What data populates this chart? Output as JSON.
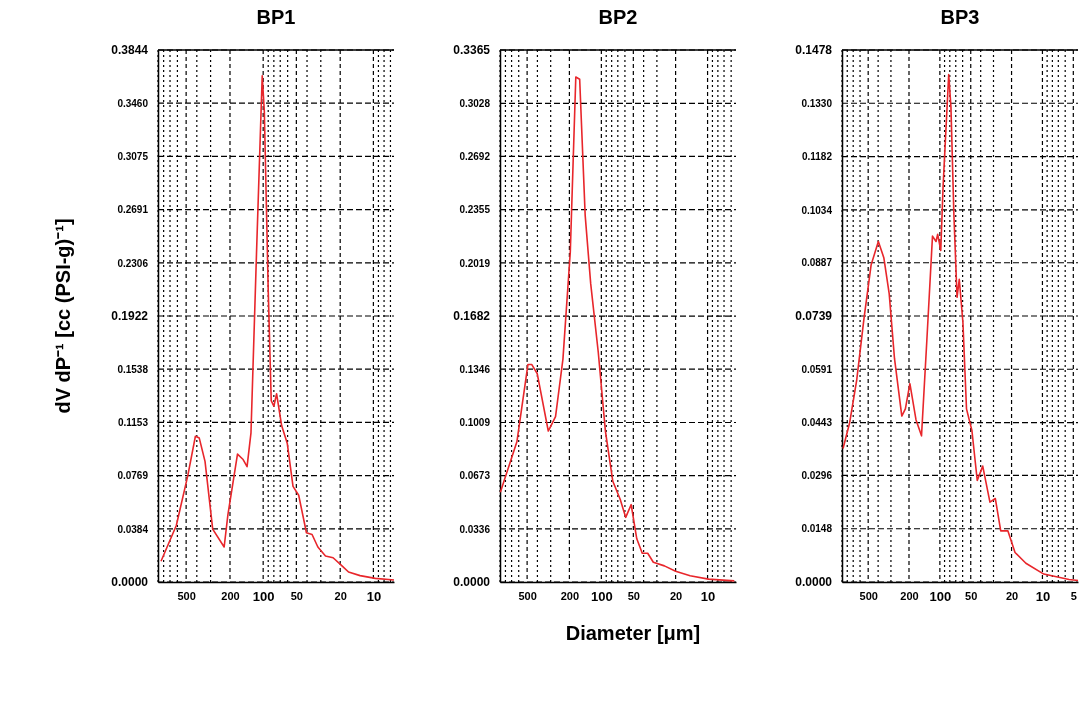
{
  "chart_data": [
    {
      "type": "line",
      "title": "BP1",
      "ylabel": "dV dP⁻¹ [cc (PSI-g)⁻¹]",
      "log": "x",
      "grid": true,
      "marker": "none",
      "line_style": "solid",
      "xlim": [
        900,
        6.5
      ],
      "ylim": [
        0,
        0.3844
      ],
      "xticks": [
        {
          "value": 900,
          "label": null
        },
        {
          "value": 800,
          "label": null
        },
        {
          "value": 700,
          "label": null
        },
        {
          "value": 600,
          "label": null
        },
        500,
        {
          "value": 400,
          "label": null
        },
        {
          "value": 300,
          "label": null
        },
        200,
        100,
        {
          "value": 90,
          "label": null
        },
        {
          "value": 80,
          "label": null
        },
        {
          "value": 70,
          "label": null
        },
        {
          "value": 60,
          "label": null
        },
        50,
        {
          "value": 40,
          "label": null
        },
        {
          "value": 30,
          "label": null
        },
        20,
        10,
        {
          "value": 9,
          "label": null
        },
        {
          "value": 8,
          "label": null
        },
        {
          "value": 7,
          "label": null
        }
      ],
      "yticks": [
        {
          "value": 0,
          "label": "0.0000"
        },
        {
          "value": 0.0384,
          "label": "0.0384"
        },
        {
          "value": 0.0769,
          "label": "0.0769"
        },
        {
          "value": 0.1153,
          "label": "0.1153"
        },
        {
          "value": 0.1538,
          "label": "0.1538"
        },
        {
          "value": 0.1922,
          "label": "0.1922"
        },
        {
          "value": 0.2306,
          "label": "0.2306"
        },
        {
          "value": 0.2691,
          "label": "0.2691"
        },
        {
          "value": 0.3075,
          "label": "0.3075"
        },
        {
          "value": 0.346,
          "label": "0.3460"
        },
        {
          "value": 0.3844,
          "label": "0.3844"
        }
      ],
      "series": [
        {
          "color": "#e8262b",
          "x": [
            845,
            614,
            483,
            412,
            380,
            337,
            287,
            226,
            209,
            171,
            152,
            140,
            129,
            115,
            102,
            97.6,
            90,
            84.5,
            80,
            75.5,
            68,
            60.4,
            53.6,
            47.6,
            40.5,
            36,
            31.9,
            27.2,
            23.2,
            19.7,
            16.8,
            13.2,
            9.6,
            6.5
          ],
          "values": [
            0.015,
            0.0408,
            0.0769,
            0.1053,
            0.104,
            0.0872,
            0.0382,
            0.0253,
            0.0485,
            0.0924,
            0.0885,
            0.0833,
            0.1078,
            0.2368,
            0.3658,
            0.34,
            0.211,
            0.131,
            0.127,
            0.136,
            0.113,
            0.1,
            0.0691,
            0.0627,
            0.0356,
            0.0343,
            0.0253,
            0.0188,
            0.0175,
            0.0124,
            0.0072,
            0.0046,
            0.0026,
            0.0015
          ]
        }
      ]
    },
    {
      "type": "line",
      "title": "BP2",
      "xlabel": "Diameter [μm]",
      "log": "x",
      "grid": true,
      "marker": "none",
      "line_style": "solid",
      "xlim": [
        900,
        5.4
      ],
      "ylim": [
        0,
        0.3365
      ],
      "xticks": [
        {
          "value": 900,
          "label": null
        },
        {
          "value": 800,
          "label": null
        },
        {
          "value": 700,
          "label": null
        },
        {
          "value": 600,
          "label": null
        },
        500,
        {
          "value": 400,
          "label": null
        },
        {
          "value": 300,
          "label": null
        },
        200,
        100,
        {
          "value": 90,
          "label": null
        },
        {
          "value": 80,
          "label": null
        },
        {
          "value": 70,
          "label": null
        },
        {
          "value": 60,
          "label": null
        },
        50,
        {
          "value": 40,
          "label": null
        },
        {
          "value": 30,
          "label": null
        },
        20,
        10,
        {
          "value": 9,
          "label": null
        },
        {
          "value": 8,
          "label": null
        },
        {
          "value": 7,
          "label": null
        },
        {
          "value": 6,
          "label": null
        }
      ],
      "yticks": [
        {
          "value": 0,
          "label": "0.0000"
        },
        {
          "value": 0.0336,
          "label": "0.0336"
        },
        {
          "value": 0.0673,
          "label": "0.0673"
        },
        {
          "value": 0.1009,
          "label": "0.1009"
        },
        {
          "value": 0.1346,
          "label": "0.1346"
        },
        {
          "value": 0.1682,
          "label": "0.1682"
        },
        {
          "value": 0.2019,
          "label": "0.2019"
        },
        {
          "value": 0.2355,
          "label": "0.2355"
        },
        {
          "value": 0.2692,
          "label": "0.2692"
        },
        {
          "value": 0.3028,
          "label": "0.3028"
        },
        {
          "value": 0.3365,
          "label": "0.3365"
        }
      ],
      "series": [
        {
          "color": "#e8262b",
          "x": [
            893,
            624,
            491,
            453,
            402,
            316,
            270,
            230,
            196,
            174,
            160,
            142,
            126,
            107,
            91.6,
            78,
            66.5,
            59,
            52.4,
            46.4,
            41.2,
            36.6,
            32.4,
            25.5,
            20,
            14.6,
            9.8,
            5.6
          ],
          "values": [
            0.0568,
            0.0887,
            0.1376,
            0.1376,
            0.1319,
            0.0955,
            0.1046,
            0.141,
            0.209,
            0.3194,
            0.318,
            0.2319,
            0.1887,
            0.1455,
            0.0955,
            0.0637,
            0.0523,
            0.0409,
            0.0489,
            0.0273,
            0.0182,
            0.0182,
            0.0125,
            0.0102,
            0.0068,
            0.0039,
            0.0018,
            0.0007
          ]
        }
      ]
    },
    {
      "type": "line",
      "title": "BP3",
      "log": "x",
      "grid": true,
      "marker": "none",
      "line_style": "solid",
      "xlim": [
        900,
        4.5
      ],
      "ylim": [
        0,
        0.1478
      ],
      "xticks": [
        {
          "value": 900,
          "label": null
        },
        {
          "value": 800,
          "label": null
        },
        {
          "value": 700,
          "label": null
        },
        {
          "value": 600,
          "label": null
        },
        500,
        {
          "value": 400,
          "label": null
        },
        {
          "value": 300,
          "label": null
        },
        200,
        100,
        {
          "value": 90,
          "label": null
        },
        {
          "value": 80,
          "label": null
        },
        {
          "value": 70,
          "label": null
        },
        {
          "value": 60,
          "label": null
        },
        50,
        {
          "value": 40,
          "label": null
        },
        {
          "value": 30,
          "label": null
        },
        20,
        10,
        {
          "value": 9,
          "label": null
        },
        {
          "value": 8,
          "label": null
        },
        {
          "value": 7,
          "label": null
        },
        {
          "value": 6,
          "label": null
        },
        5
      ],
      "yticks": [
        {
          "value": 0,
          "label": "0.0000"
        },
        {
          "value": 0.0148,
          "label": "0.0148"
        },
        {
          "value": 0.0296,
          "label": "0.0296"
        },
        {
          "value": 0.0443,
          "label": "0.0443"
        },
        {
          "value": 0.0591,
          "label": "0.0591"
        },
        {
          "value": 0.0739,
          "label": "0.0739"
        },
        {
          "value": 0.0887,
          "label": "0.0887"
        },
        {
          "value": 0.1034,
          "label": "0.1034"
        },
        {
          "value": 0.1182,
          "label": "0.1182"
        },
        {
          "value": 0.133,
          "label": "0.1330"
        },
        {
          "value": 0.1478,
          "label": "0.1478"
        }
      ],
      "series": [
        {
          "color": "#e8262b",
          "x": [
            879,
            760,
            647,
            550,
            468,
            398,
            352,
            312,
            277,
            235,
            217,
            196,
            171,
            151,
            134,
            118,
            109,
            105,
            98,
            93,
            82,
            78,
            73,
            68,
            64.7,
            59.6,
            55,
            48.7,
            43.2,
            38.2,
            32.5,
            28.8,
            25.5,
            21.7,
            18.5,
            14.5,
            9.7,
            5.5,
            4.5
          ],
          "values": [
            0.0371,
            0.0441,
            0.0561,
            0.0731,
            0.0881,
            0.0946,
            0.0901,
            0.0801,
            0.0621,
            0.0461,
            0.0481,
            0.0551,
            0.0451,
            0.0406,
            0.0671,
            0.0961,
            0.0946,
            0.0966,
            0.0921,
            0.11,
            0.141,
            0.132,
            0.102,
            0.0791,
            0.0841,
            0.0721,
            0.0481,
            0.0421,
            0.0282,
            0.0322,
            0.0222,
            0.0232,
            0.0142,
            0.0142,
            0.0082,
            0.0052,
            0.0022,
            0.0007,
            0.0004
          ]
        }
      ]
    }
  ]
}
